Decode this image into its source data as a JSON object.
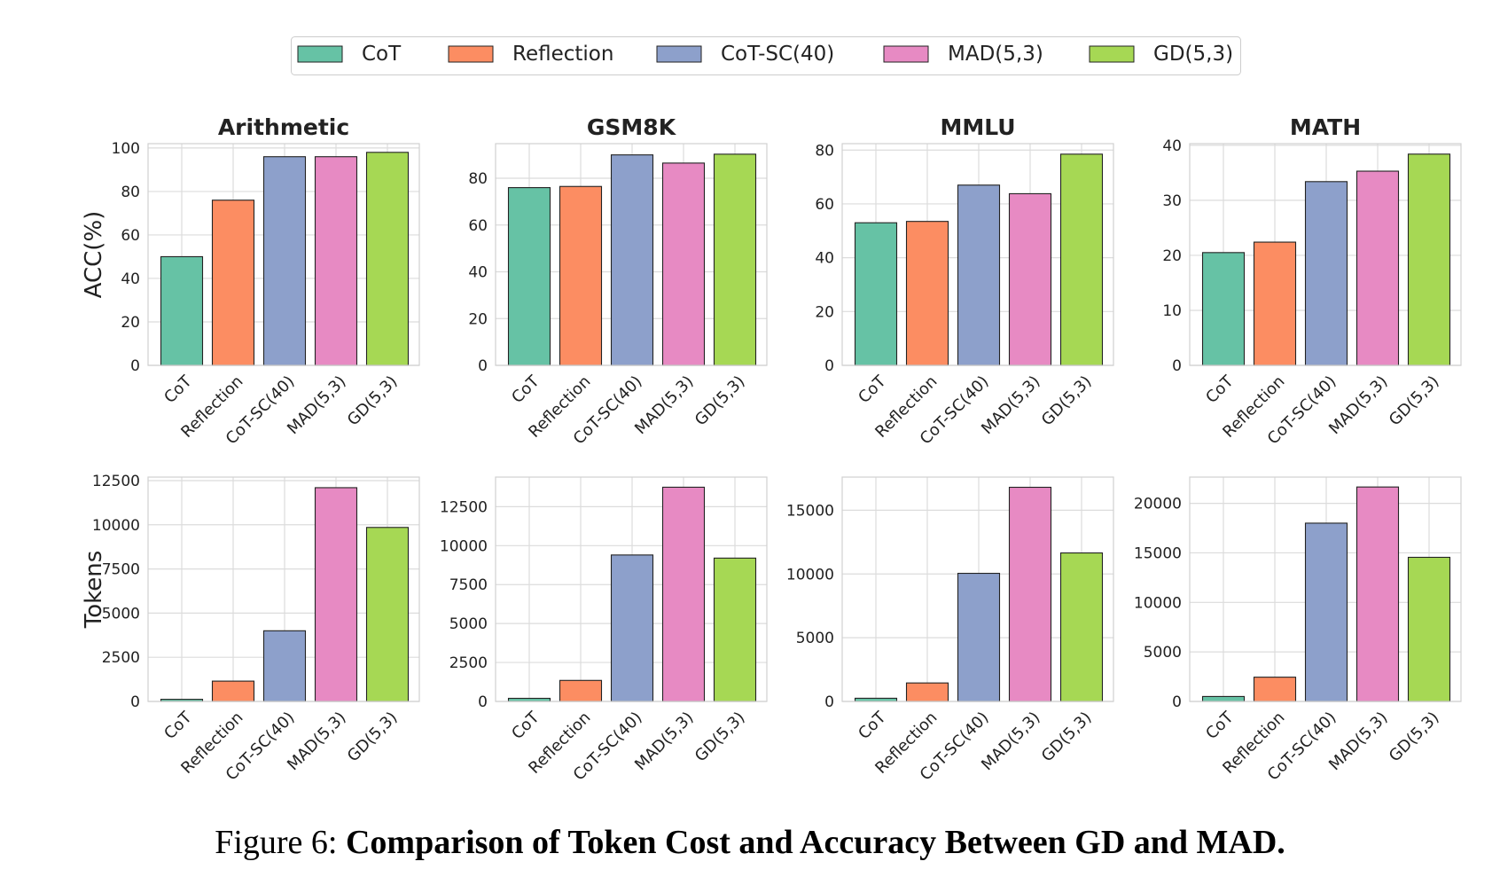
{
  "legend": [
    {
      "label": "CoT",
      "color": "#66c2a5"
    },
    {
      "label": "Reflection",
      "color": "#fc8d62"
    },
    {
      "label": "CoT-SC(40)",
      "color": "#8da0cb"
    },
    {
      "label": "MAD(5,3)",
      "color": "#e78ac3"
    },
    {
      "label": "GD(5,3)",
      "color": "#a6d854"
    }
  ],
  "caption": {
    "prefix": "Figure 6: ",
    "title": "Comparison of Token Cost and Accuracy Between GD and MAD."
  },
  "chart_data": [
    {
      "type": "bar",
      "title": "Arithmetic",
      "ylabel": "ACC(%)",
      "categories": [
        "CoT",
        "Reflection",
        "CoT-SC(40)",
        "MAD(5,3)",
        "GD(5,3)"
      ],
      "values": [
        50,
        76,
        96,
        96,
        98
      ],
      "ylim": [
        0,
        102
      ],
      "yticks": [
        0,
        20,
        40,
        60,
        80,
        100
      ],
      "grid": true
    },
    {
      "type": "bar",
      "title": "GSM8K",
      "ylabel": "",
      "categories": [
        "CoT",
        "Reflection",
        "CoT-SC(40)",
        "MAD(5,3)",
        "GD(5,3)"
      ],
      "values": [
        76,
        76.5,
        90,
        86.5,
        90.3
      ],
      "ylim": [
        0,
        94.8
      ],
      "yticks": [
        0,
        20,
        40,
        60,
        80
      ],
      "grid": true
    },
    {
      "type": "bar",
      "title": "MMLU",
      "ylabel": "",
      "categories": [
        "CoT",
        "Reflection",
        "CoT-SC(40)",
        "MAD(5,3)",
        "GD(5,3)"
      ],
      "values": [
        53,
        53.5,
        67,
        63.8,
        78.5
      ],
      "ylim": [
        0,
        82.4
      ],
      "yticks": [
        0,
        20,
        40,
        60,
        80
      ],
      "grid": true
    },
    {
      "type": "bar",
      "title": "MATH",
      "ylabel": "",
      "categories": [
        "CoT",
        "Reflection",
        "CoT-SC(40)",
        "MAD(5,3)",
        "GD(5,3)"
      ],
      "values": [
        20.5,
        22.4,
        33.4,
        35.3,
        38.4
      ],
      "ylim": [
        0,
        40.3
      ],
      "yticks": [
        0,
        10,
        20,
        30,
        40
      ],
      "grid": true
    },
    {
      "type": "bar",
      "title": "",
      "ylabel": "Tokens",
      "categories": [
        "CoT",
        "Reflection",
        "CoT-SC(40)",
        "MAD(5,3)",
        "GD(5,3)"
      ],
      "values": [
        120,
        1150,
        4000,
        12100,
        9850
      ],
      "ylim": [
        0,
        12700
      ],
      "yticks": [
        0,
        2500,
        5000,
        7500,
        10000,
        12500
      ],
      "grid": true
    },
    {
      "type": "bar",
      "title": "",
      "ylabel": "",
      "categories": [
        "CoT",
        "Reflection",
        "CoT-SC(40)",
        "MAD(5,3)",
        "GD(5,3)"
      ],
      "values": [
        200,
        1350,
        9400,
        13750,
        9200
      ],
      "ylim": [
        0,
        14400
      ],
      "yticks": [
        0,
        2500,
        5000,
        7500,
        10000,
        12500
      ],
      "grid": true
    },
    {
      "type": "bar",
      "title": "",
      "ylabel": "",
      "categories": [
        "CoT",
        "Reflection",
        "CoT-SC(40)",
        "MAD(5,3)",
        "GD(5,3)"
      ],
      "values": [
        250,
        1450,
        10050,
        16800,
        11650
      ],
      "ylim": [
        0,
        17600
      ],
      "yticks": [
        0,
        5000,
        10000,
        15000
      ],
      "grid": true
    },
    {
      "type": "bar",
      "title": "",
      "ylabel": "",
      "categories": [
        "CoT",
        "Reflection",
        "CoT-SC(40)",
        "MAD(5,3)",
        "GD(5,3)"
      ],
      "values": [
        500,
        2450,
        18000,
        21650,
        14550
      ],
      "ylim": [
        0,
        22650
      ],
      "yticks": [
        0,
        5000,
        10000,
        15000,
        20000
      ],
      "grid": true
    }
  ]
}
